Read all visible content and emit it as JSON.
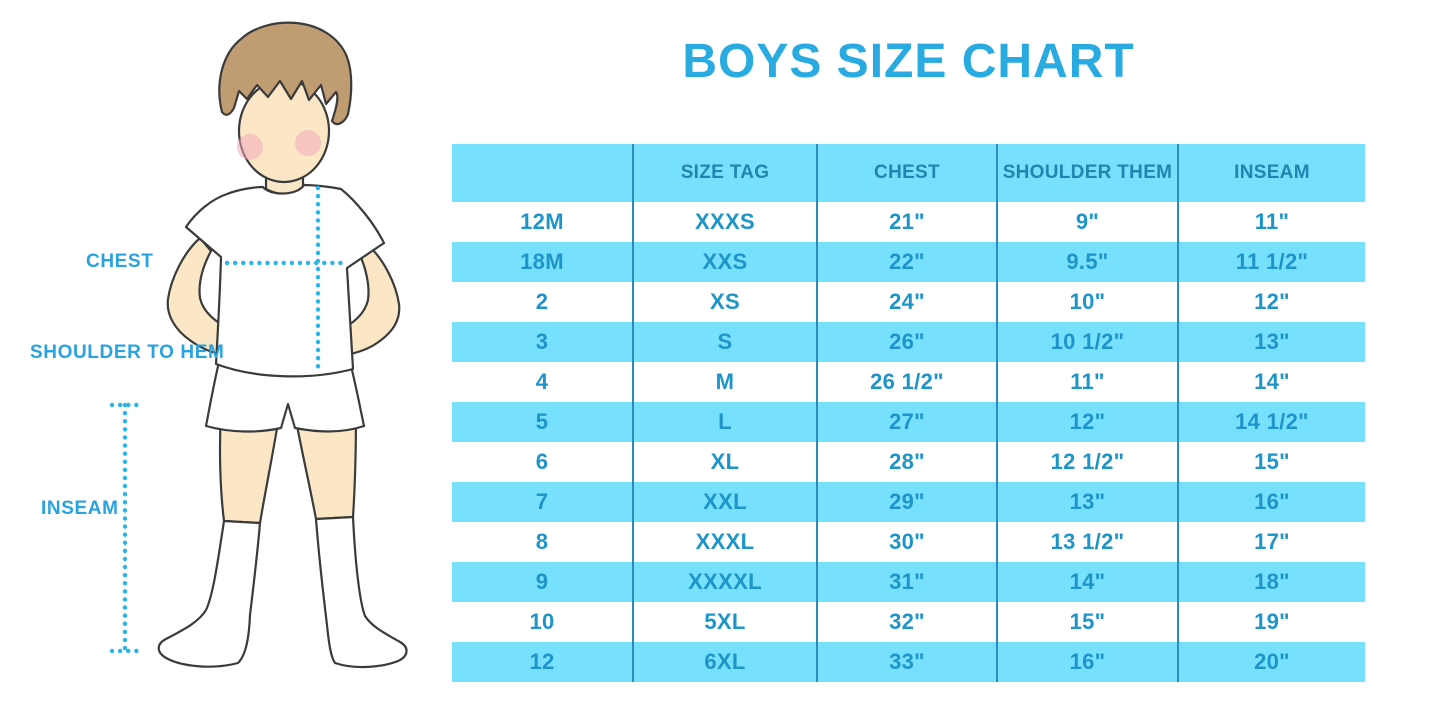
{
  "title": "BOYS SIZE CHART",
  "illustration": {
    "labels": {
      "chest": "CHEST",
      "shoulder_to_hem": "SHOULDER TO HEM",
      "inseam": "INSEAM"
    }
  },
  "chart_data": {
    "type": "table",
    "title": "BOYS SIZE CHART",
    "columns": [
      "",
      "SIZE TAG",
      "CHEST",
      "SHOULDER THEM",
      "INSEAM"
    ],
    "rows": [
      [
        "12M",
        "XXXS",
        "21\"",
        "9\"",
        "11\""
      ],
      [
        "18M",
        "XXS",
        "22\"",
        "9.5\"",
        "11 1/2\""
      ],
      [
        "2",
        "XS",
        "24\"",
        "10\"",
        "12\""
      ],
      [
        "3",
        "S",
        "26\"",
        "10 1/2\"",
        "13\""
      ],
      [
        "4",
        "M",
        "26 1/2\"",
        "11\"",
        "14\""
      ],
      [
        "5",
        "L",
        "27\"",
        "12\"",
        "14 1/2\""
      ],
      [
        "6",
        "XL",
        "28\"",
        "12 1/2\"",
        "15\""
      ],
      [
        "7",
        "XXL",
        "29\"",
        "13\"",
        "16\""
      ],
      [
        "8",
        "XXXL",
        "30\"",
        "13 1/2\"",
        "17\""
      ],
      [
        "9",
        "XXXXL",
        "31\"",
        "14\"",
        "18\""
      ],
      [
        "10",
        "5XL",
        "32\"",
        "15\"",
        "19\""
      ],
      [
        "12",
        "6XL",
        "33\"",
        "16\"",
        "20\""
      ]
    ],
    "layout": {
      "striped": true,
      "stripe_pattern": "header and even data rows light blue",
      "grid": "vertical dividers only"
    }
  },
  "colors": {
    "title_blue": "#29ABE2",
    "label_blue": "#29A3DF",
    "band_blue": "#76E0FD",
    "header_text": "#2384AF",
    "cell_text": "#1E95C9",
    "divider": "#2A8CBC",
    "dotted_line": "#2CB3EA",
    "skin": "#FBE7C5",
    "hair": "#BF9C72",
    "outline": "#3B3B3B",
    "cheek": "#F2A9BC"
  }
}
